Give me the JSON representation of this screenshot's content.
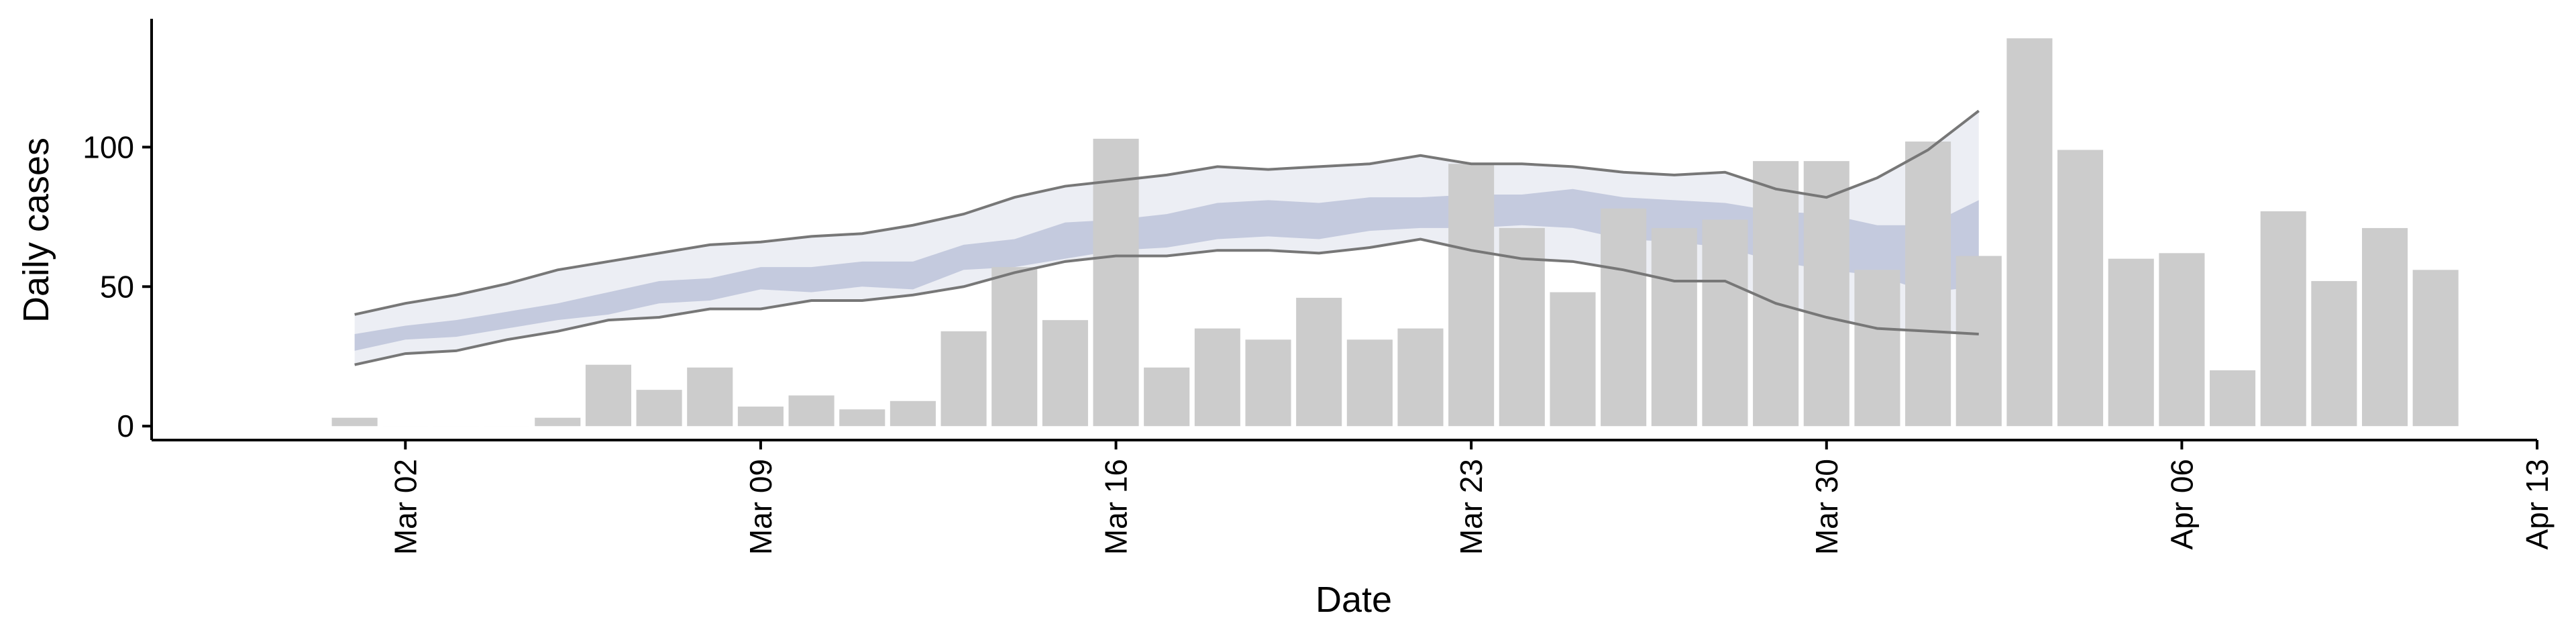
{
  "chart_data": {
    "type": "bar",
    "title": "",
    "xlabel": "Date",
    "ylabel": "Daily cases",
    "x_range": [
      "2020-02-26",
      "2020-04-13"
    ],
    "ylim": [
      -5,
      146
    ],
    "grid": false,
    "legend": "none",
    "x_ticks": [
      {
        "date": "2020-03-02",
        "label": "Mar 02"
      },
      {
        "date": "2020-03-09",
        "label": "Mar 09"
      },
      {
        "date": "2020-03-16",
        "label": "Mar 16"
      },
      {
        "date": "2020-03-23",
        "label": "Mar 23"
      },
      {
        "date": "2020-03-30",
        "label": "Mar 30"
      },
      {
        "date": "2020-04-06",
        "label": "Apr 06"
      },
      {
        "date": "2020-04-13",
        "label": "Apr 13"
      }
    ],
    "y_ticks": [
      0,
      50,
      100
    ],
    "series": [
      {
        "type": "bar",
        "color": "#cccccc",
        "x": [
          "2020-03-01",
          "2020-03-02",
          "2020-03-03",
          "2020-03-04",
          "2020-03-05",
          "2020-03-06",
          "2020-03-07",
          "2020-03-08",
          "2020-03-09",
          "2020-03-10",
          "2020-03-11",
          "2020-03-12",
          "2020-03-13",
          "2020-03-14",
          "2020-03-15",
          "2020-03-16",
          "2020-03-17",
          "2020-03-18",
          "2020-03-19",
          "2020-03-20",
          "2020-03-21",
          "2020-03-22",
          "2020-03-23",
          "2020-03-24",
          "2020-03-25",
          "2020-03-26",
          "2020-03-27",
          "2020-03-28",
          "2020-03-29",
          "2020-03-30",
          "2020-03-31",
          "2020-04-01",
          "2020-04-02",
          "2020-04-03",
          "2020-04-04",
          "2020-04-05",
          "2020-04-06",
          "2020-04-07",
          "2020-04-08",
          "2020-04-09",
          "2020-04-10",
          "2020-04-11"
        ],
        "values": [
          3,
          0,
          0,
          0,
          3,
          22,
          13,
          21,
          7,
          11,
          6,
          9,
          34,
          57,
          38,
          103,
          21,
          35,
          31,
          46,
          31,
          35,
          94,
          71,
          48,
          78,
          71,
          74,
          95,
          95,
          56,
          102,
          61,
          139,
          99,
          60,
          62,
          20,
          77,
          52,
          71,
          56
        ]
      },
      {
        "type": "band",
        "color": "#e9ebf2",
        "opacity": 0.85,
        "x": [
          "2020-03-01",
          "2020-03-02",
          "2020-03-03",
          "2020-03-04",
          "2020-03-05",
          "2020-03-06",
          "2020-03-07",
          "2020-03-08",
          "2020-03-09",
          "2020-03-10",
          "2020-03-11",
          "2020-03-12",
          "2020-03-13",
          "2020-03-14",
          "2020-03-15",
          "2020-03-16",
          "2020-03-17",
          "2020-03-18",
          "2020-03-19",
          "2020-03-20",
          "2020-03-21",
          "2020-03-22",
          "2020-03-23",
          "2020-03-24",
          "2020-03-25",
          "2020-03-26",
          "2020-03-27",
          "2020-03-28",
          "2020-03-29",
          "2020-03-30",
          "2020-03-31",
          "2020-04-01",
          "2020-04-02"
        ],
        "lower": [
          22,
          26,
          27,
          31,
          34,
          38,
          39,
          42,
          42,
          45,
          45,
          47,
          50,
          55,
          59,
          61,
          61,
          63,
          63,
          62,
          64,
          67,
          63,
          60,
          59,
          56,
          52,
          52,
          44,
          39,
          35,
          34,
          33
        ],
        "upper": [
          40,
          44,
          47,
          51,
          56,
          59,
          62,
          65,
          66,
          68,
          69,
          72,
          76,
          82,
          86,
          88,
          90,
          93,
          92,
          93,
          94,
          97,
          94,
          94,
          93,
          91,
          90,
          91,
          85,
          82,
          89,
          99,
          113
        ]
      },
      {
        "type": "band",
        "color": "#b3bbd4",
        "opacity": 0.7,
        "x": [
          "2020-03-01",
          "2020-03-02",
          "2020-03-03",
          "2020-03-04",
          "2020-03-05",
          "2020-03-06",
          "2020-03-07",
          "2020-03-08",
          "2020-03-09",
          "2020-03-10",
          "2020-03-11",
          "2020-03-12",
          "2020-03-13",
          "2020-03-14",
          "2020-03-15",
          "2020-03-16",
          "2020-03-17",
          "2020-03-18",
          "2020-03-19",
          "2020-03-20",
          "2020-03-21",
          "2020-03-22",
          "2020-03-23",
          "2020-03-24",
          "2020-03-25",
          "2020-03-26",
          "2020-03-27",
          "2020-03-28",
          "2020-03-29",
          "2020-03-30",
          "2020-03-31",
          "2020-04-01",
          "2020-04-02"
        ],
        "lower": [
          27,
          31,
          32,
          35,
          38,
          40,
          44,
          45,
          49,
          48,
          50,
          49,
          56,
          57,
          60,
          63,
          64,
          67,
          68,
          67,
          70,
          71,
          71,
          72,
          71,
          67,
          66,
          64,
          59,
          56,
          54,
          48,
          50
        ],
        "upper": [
          33,
          36,
          38,
          41,
          44,
          48,
          52,
          53,
          57,
          57,
          59,
          59,
          65,
          67,
          73,
          74,
          76,
          80,
          81,
          80,
          82,
          82,
          83,
          83,
          85,
          82,
          81,
          80,
          77,
          76,
          72,
          72,
          81
        ]
      }
    ]
  }
}
